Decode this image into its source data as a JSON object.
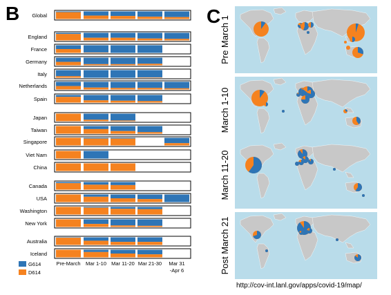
{
  "panel_b_label": "B",
  "panel_c_label": "C",
  "colors": {
    "G614": "#2e75b6",
    "D614": "#f5821f",
    "map_land": "#c8c8c8",
    "map_ocean": "#b9dcea"
  },
  "chart_data": {
    "type": "bar",
    "stacked": true,
    "orientation": "horizontal-rows",
    "categories": [
      "Pre-March",
      "Mar 1-10",
      "Mar 11-20",
      "Mar 21-30",
      "Mar 31\n-Apr 6"
    ],
    "category_lines": [
      [
        "Pre-March"
      ],
      [
        "Mar 1-10"
      ],
      [
        "Mar 11-20"
      ],
      [
        "Mar 21-30"
      ],
      [
        "Mar 31",
        "-Apr 6"
      ]
    ],
    "legend": [
      {
        "key": "G614",
        "label": "G614",
        "color": "#2e75b6"
      },
      {
        "key": "D614",
        "label": "D614",
        "color": "#f5821f"
      }
    ],
    "groups": [
      {
        "rows": [
          {
            "label": "Global",
            "g614": [
              0.1,
              0.55,
              0.6,
              0.7,
              0.75
            ]
          }
        ]
      },
      {
        "rows": [
          {
            "label": "England",
            "g614": [
              0.15,
              0.65,
              0.65,
              0.75,
              0.8
            ]
          },
          {
            "label": "France",
            "g614": [
              0.5,
              0.95,
              1.0,
              1.0,
              null
            ]
          },
          {
            "label": "Germany",
            "g614": [
              0.55,
              0.85,
              0.85,
              0.8,
              null
            ]
          },
          {
            "label": "Italy",
            "g614": [
              0.8,
              1.0,
              1.0,
              0.95,
              null
            ]
          },
          {
            "label": "Netherlands",
            "g614": [
              0.55,
              0.75,
              0.8,
              0.8,
              0.85
            ]
          },
          {
            "label": "Spain",
            "g614": [
              0.25,
              0.7,
              0.75,
              0.8,
              null
            ]
          }
        ]
      },
      {
        "rows": [
          {
            "label": "Japan",
            "g614": [
              0.0,
              0.8,
              0.9,
              null,
              null
            ]
          },
          {
            "label": "Taiwan",
            "g614": [
              0.0,
              0.4,
              0.65,
              0.8,
              null
            ]
          },
          {
            "label": "Singapore",
            "g614": [
              0.0,
              0.1,
              0.1,
              null,
              0.7
            ]
          },
          {
            "label": "Viet Nam",
            "g614": [
              0.0,
              1.0,
              null,
              null,
              null
            ]
          },
          {
            "label": "China",
            "g614": [
              0.0,
              0.0,
              0.0,
              null,
              null
            ]
          }
        ]
      },
      {
        "rows": [
          {
            "label": "Canada",
            "g614": [
              0.15,
              0.35,
              0.4,
              null,
              null
            ]
          },
          {
            "label": "USA",
            "g614": [
              0.0,
              0.3,
              0.5,
              0.6,
              1.0
            ]
          },
          {
            "label": "Washington",
            "g614": [
              0.0,
              0.1,
              0.25,
              0.3,
              null
            ]
          },
          {
            "label": "New York",
            "g614": [
              0.0,
              0.6,
              0.8,
              0.85,
              null
            ]
          }
        ]
      },
      {
        "rows": [
          {
            "label": "Australia",
            "g614": [
              0.05,
              0.45,
              0.6,
              0.6,
              null
            ]
          },
          {
            "label": "Iceland",
            "g614": [
              0.0,
              0.3,
              0.5,
              0.6,
              null
            ]
          }
        ]
      }
    ]
  },
  "maps": [
    {
      "label": "Pre March 1"
    },
    {
      "label": "March 1-10"
    },
    {
      "label": "March 11-20"
    },
    {
      "label": "Post March 21"
    }
  ],
  "source_url": "http://cov-int.lanl.gov/apps/covid-19/map/"
}
